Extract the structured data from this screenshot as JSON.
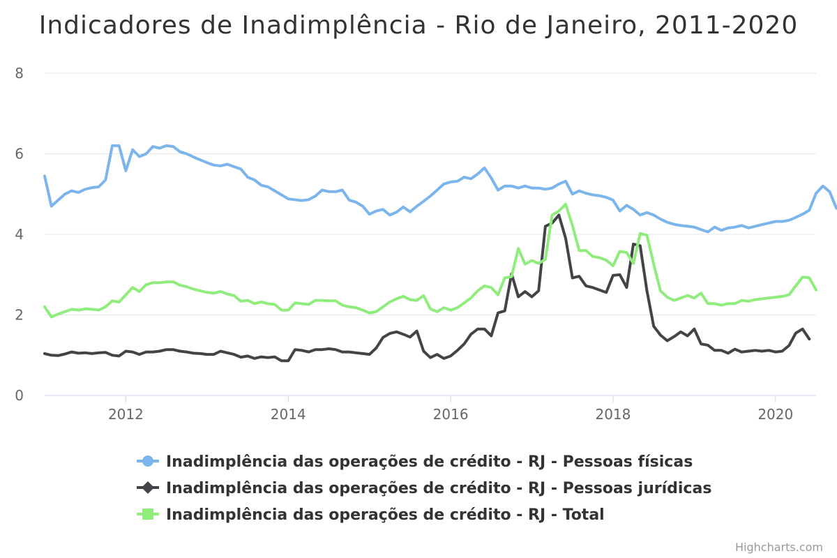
{
  "chart_data": {
    "type": "line",
    "title": "Indicadores de Inadimplência - Rio de Janeiro, 2011-2020",
    "xlabel": "",
    "ylabel": "",
    "xlim": [
      2011.0,
      2020.5
    ],
    "ylim": [
      0,
      8
    ],
    "y_ticks": [
      "0",
      "2",
      "4",
      "6",
      "8"
    ],
    "x_ticks": [
      "2012",
      "2014",
      "2016",
      "2018",
      "2020"
    ],
    "grid": true,
    "legend_position": "bottom",
    "x_step_months": 1,
    "x_start": "2011-01",
    "series": [
      {
        "name": "Inadimplência das operações de crédito - RJ - Pessoas físicas",
        "color": "#7cb5ec",
        "marker": "circle",
        "values": [
          5.45,
          4.7,
          4.85,
          5.0,
          5.08,
          5.04,
          5.12,
          5.16,
          5.18,
          5.35,
          6.2,
          6.2,
          5.58,
          6.1,
          5.93,
          6.0,
          6.18,
          6.14,
          6.2,
          6.18,
          6.05,
          6.0,
          5.92,
          5.85,
          5.78,
          5.72,
          5.7,
          5.74,
          5.68,
          5.62,
          5.42,
          5.35,
          5.22,
          5.18,
          5.08,
          4.98,
          4.88,
          4.86,
          4.84,
          4.86,
          4.95,
          5.1,
          5.06,
          5.06,
          5.1,
          4.85,
          4.8,
          4.7,
          4.5,
          4.58,
          4.62,
          4.48,
          4.55,
          4.68,
          4.56,
          4.7,
          4.82,
          4.95,
          5.1,
          5.25,
          5.3,
          5.32,
          5.42,
          5.38,
          5.5,
          5.65,
          5.4,
          5.1,
          5.2,
          5.2,
          5.15,
          5.2,
          5.15,
          5.15,
          5.12,
          5.15,
          5.25,
          5.32,
          5.0,
          5.08,
          5.02,
          4.98,
          4.96,
          4.92,
          4.85,
          4.58,
          4.72,
          4.62,
          4.48,
          4.54,
          4.48,
          4.38,
          4.3,
          4.25,
          4.22,
          4.2,
          4.18,
          4.12,
          4.06,
          4.18,
          4.1,
          4.16,
          4.18,
          4.22,
          4.16,
          4.2,
          4.24,
          4.28,
          4.32,
          4.32,
          4.35,
          4.42,
          4.5,
          4.6,
          5.02,
          5.2,
          5.06,
          4.65
        ]
      },
      {
        "name": "Inadimplência das operações de crédito - RJ - Pessoas jurídicas",
        "color": "#434348",
        "marker": "diamond",
        "values": [
          1.04,
          1.0,
          0.99,
          1.03,
          1.08,
          1.05,
          1.06,
          1.04,
          1.06,
          1.07,
          1.0,
          0.98,
          1.1,
          1.08,
          1.02,
          1.08,
          1.08,
          1.1,
          1.14,
          1.14,
          1.1,
          1.08,
          1.05,
          1.04,
          1.02,
          1.02,
          1.1,
          1.06,
          1.02,
          0.95,
          0.98,
          0.92,
          0.96,
          0.94,
          0.96,
          0.86,
          0.86,
          1.14,
          1.12,
          1.08,
          1.14,
          1.14,
          1.16,
          1.14,
          1.08,
          1.08,
          1.06,
          1.04,
          1.02,
          1.18,
          1.44,
          1.54,
          1.58,
          1.52,
          1.45,
          1.6,
          1.1,
          0.94,
          1.02,
          0.92,
          0.98,
          1.12,
          1.28,
          1.52,
          1.65,
          1.65,
          1.48,
          2.05,
          2.1,
          3.02,
          2.45,
          2.58,
          2.45,
          2.6,
          4.2,
          4.28,
          4.48,
          3.9,
          2.92,
          2.96,
          2.72,
          2.68,
          2.62,
          2.56,
          2.98,
          3.0,
          2.68,
          3.76,
          3.72,
          2.6,
          1.72,
          1.5,
          1.36,
          1.46,
          1.58,
          1.48,
          1.65,
          1.28,
          1.25,
          1.12,
          1.12,
          1.05,
          1.15,
          1.08,
          1.1,
          1.12,
          1.1,
          1.12,
          1.08,
          1.1,
          1.24,
          1.55,
          1.65,
          1.4
        ]
      },
      {
        "name": "Inadimplência das operações de crédito - RJ - Total",
        "color": "#90ed7d",
        "marker": "square",
        "values": [
          2.2,
          1.95,
          2.02,
          2.08,
          2.14,
          2.12,
          2.15,
          2.14,
          2.12,
          2.2,
          2.35,
          2.32,
          2.5,
          2.68,
          2.58,
          2.75,
          2.8,
          2.8,
          2.82,
          2.82,
          2.74,
          2.7,
          2.64,
          2.6,
          2.56,
          2.54,
          2.58,
          2.52,
          2.48,
          2.34,
          2.36,
          2.28,
          2.32,
          2.28,
          2.26,
          2.12,
          2.12,
          2.3,
          2.28,
          2.26,
          2.36,
          2.36,
          2.35,
          2.35,
          2.24,
          2.2,
          2.18,
          2.12,
          2.05,
          2.08,
          2.2,
          2.32,
          2.4,
          2.46,
          2.38,
          2.36,
          2.48,
          2.15,
          2.08,
          2.18,
          2.12,
          2.18,
          2.3,
          2.42,
          2.6,
          2.72,
          2.68,
          2.5,
          2.92,
          2.95,
          3.65,
          3.26,
          3.35,
          3.28,
          3.38,
          4.48,
          4.58,
          4.75,
          4.22,
          3.6,
          3.6,
          3.45,
          3.42,
          3.36,
          3.22,
          3.58,
          3.55,
          3.28,
          4.02,
          3.98,
          3.26,
          2.6,
          2.44,
          2.36,
          2.42,
          2.48,
          2.42,
          2.54,
          2.28,
          2.28,
          2.24,
          2.28,
          2.28,
          2.36,
          2.34,
          2.38,
          2.4,
          2.42,
          2.44,
          2.46,
          2.5,
          2.72,
          2.94,
          2.92,
          2.62
        ]
      }
    ]
  },
  "credit": "Highcharts.com"
}
